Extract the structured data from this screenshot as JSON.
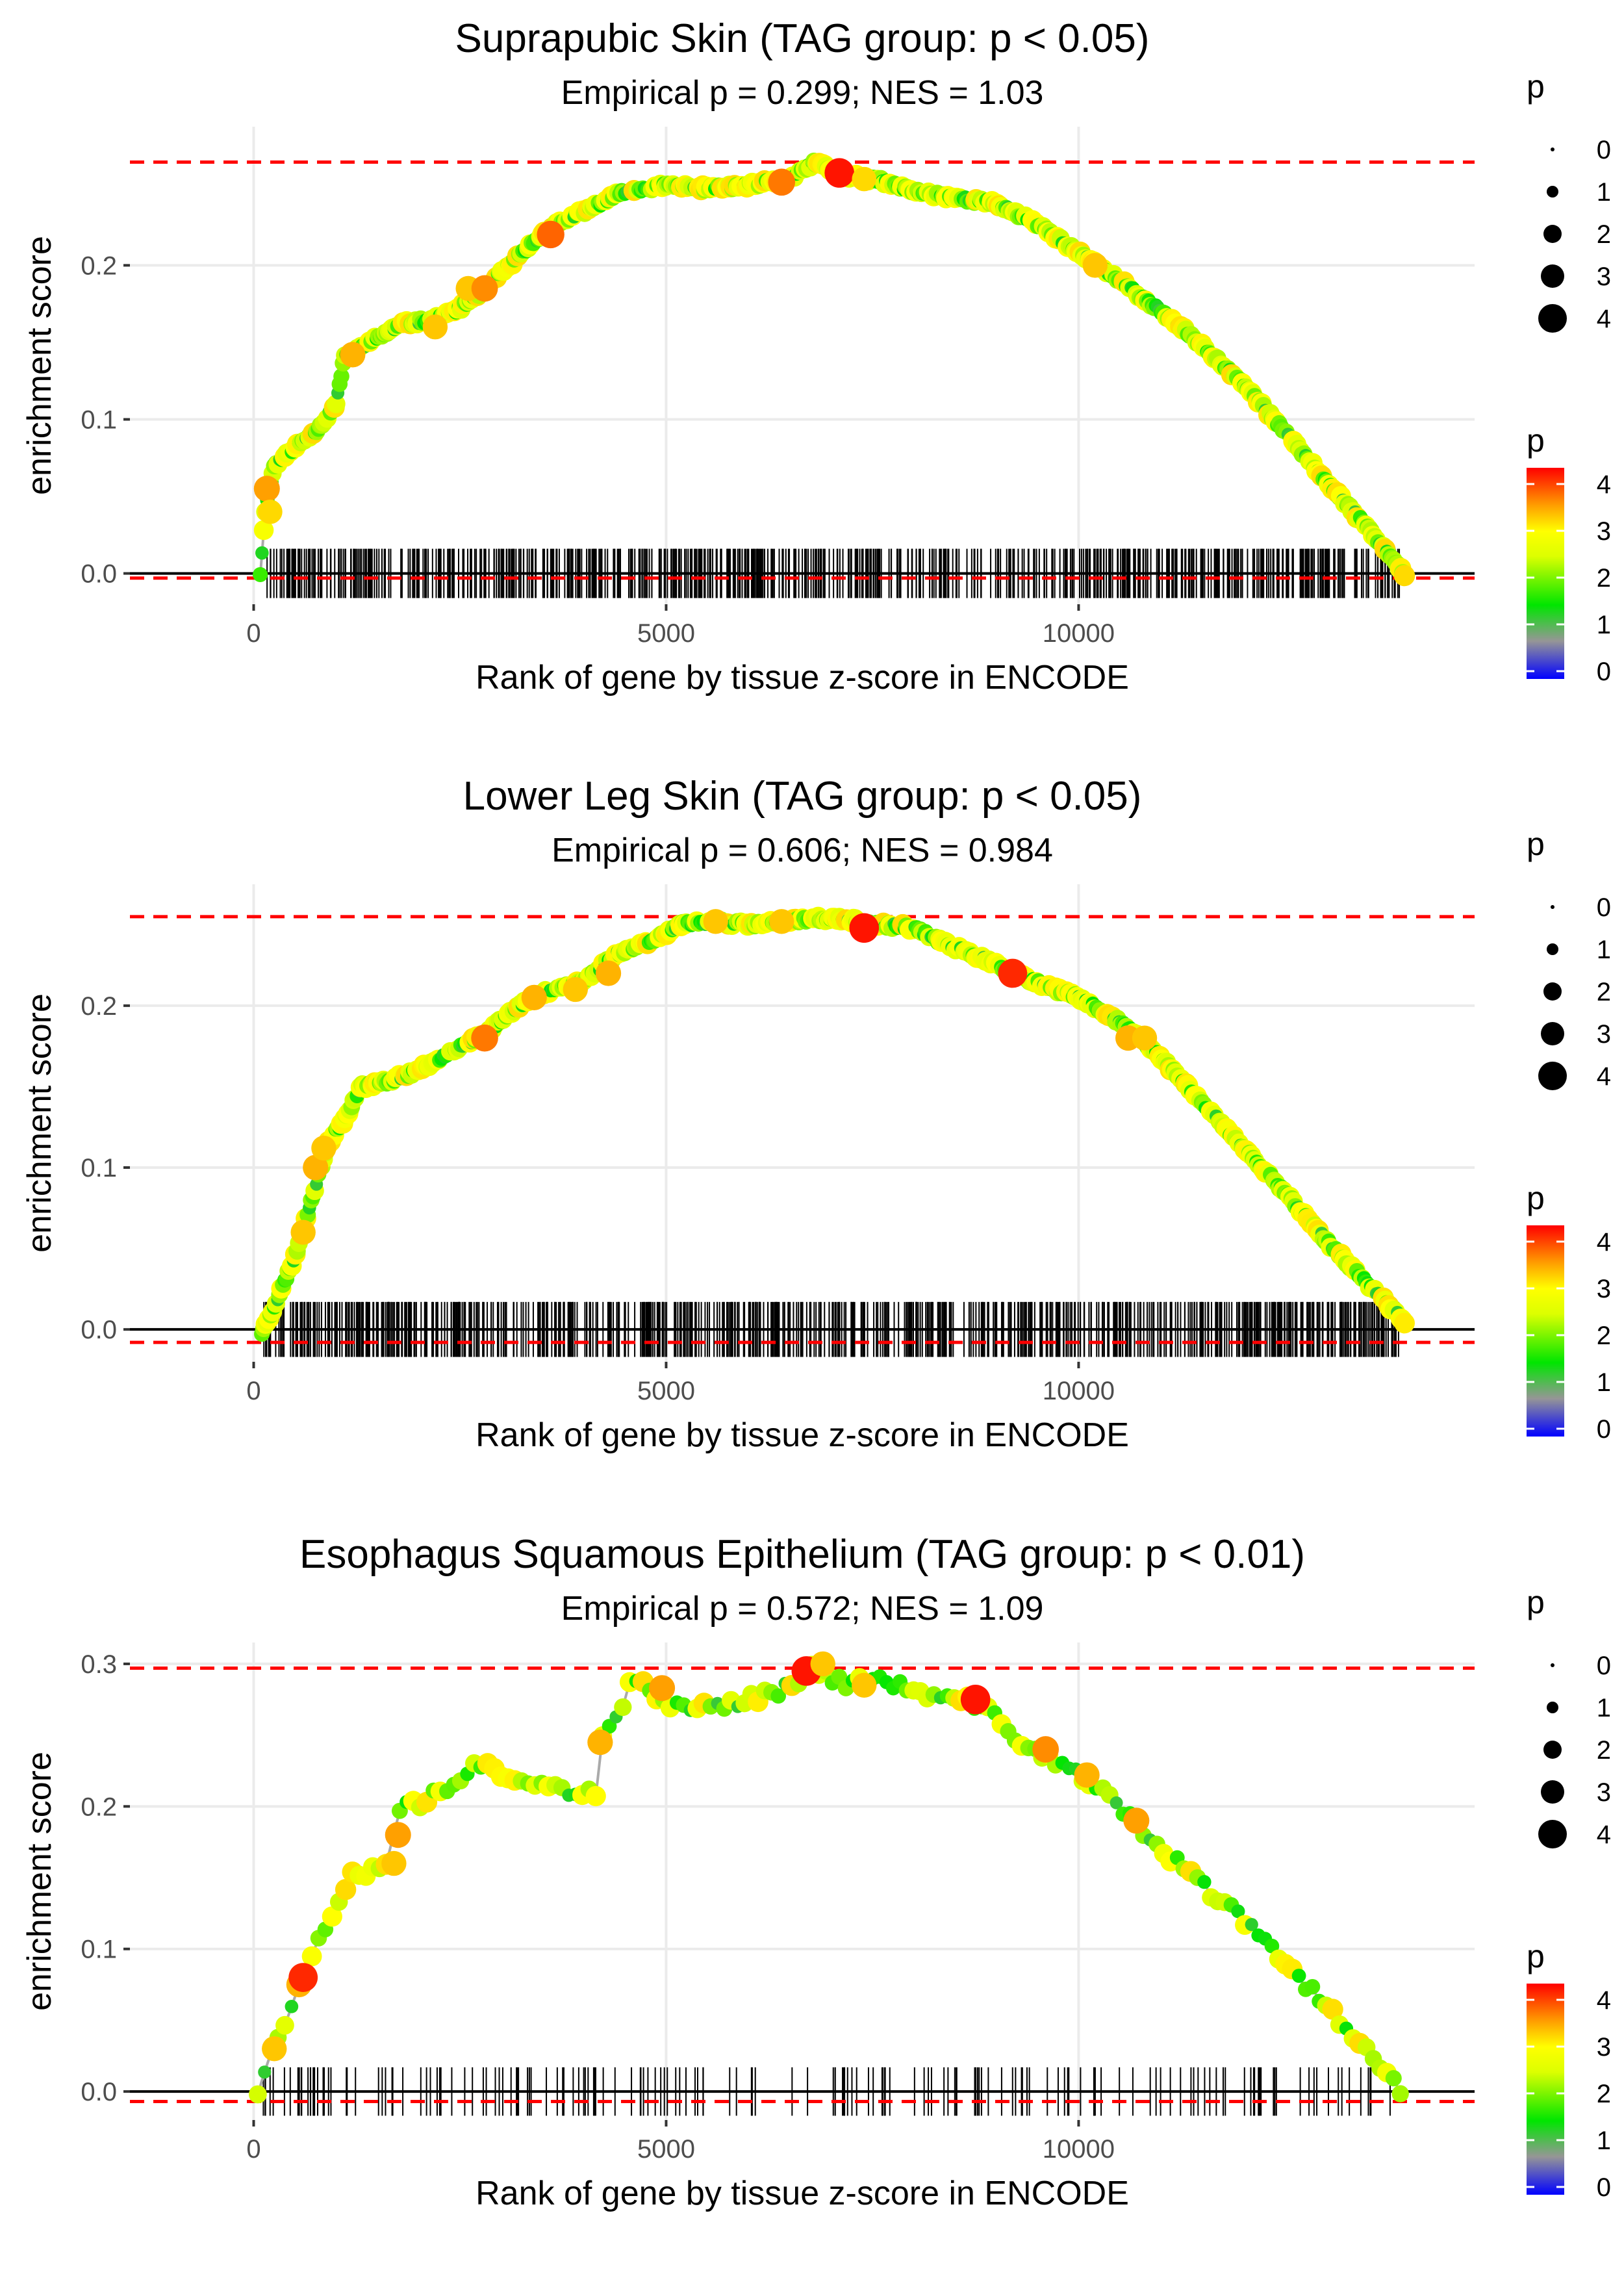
{
  "chart_data": [
    {
      "type": "line",
      "title": "Suprapubic Skin (TAG group: p < 0.05)",
      "subtitle": "Empirical p = 0.299; NES = 1.03",
      "xlabel": "Rank of gene by tissue z-score in ENCODE",
      "ylabel": "enrichment score",
      "xlim": [
        -1500,
        14800
      ],
      "ylim": [
        -0.02,
        0.29
      ],
      "xticks": [
        0,
        5000,
        10000
      ],
      "xtick_labels": [
        "0",
        "5000",
        "10000"
      ],
      "yticks": [
        0.0,
        0.1,
        0.2
      ],
      "ytick_labels": [
        "0.0",
        "0.1",
        "0.2"
      ],
      "max_es": 0.267,
      "min_es": -0.003,
      "rug_ymax": 0.016,
      "rug_range": [
        80,
        13900
      ],
      "rug_count": 700,
      "x_end": 13950,
      "seed": 11,
      "noise": 0.0015,
      "n_points": 650,
      "curve": [
        [
          80,
          0.0
        ],
        [
          150,
          0.045
        ],
        [
          250,
          0.07
        ],
        [
          500,
          0.082
        ],
        [
          800,
          0.095
        ],
        [
          1000,
          0.11
        ],
        [
          1100,
          0.14
        ],
        [
          1400,
          0.15
        ],
        [
          1800,
          0.162
        ],
        [
          2200,
          0.165
        ],
        [
          2500,
          0.172
        ],
        [
          2800,
          0.185
        ],
        [
          3200,
          0.205
        ],
        [
          3600,
          0.225
        ],
        [
          4000,
          0.235
        ],
        [
          4500,
          0.248
        ],
        [
          5000,
          0.252
        ],
        [
          5500,
          0.25
        ],
        [
          6000,
          0.252
        ],
        [
          6500,
          0.256
        ],
        [
          6800,
          0.267
        ],
        [
          7200,
          0.258
        ],
        [
          7600,
          0.255
        ],
        [
          8000,
          0.248
        ],
        [
          8500,
          0.244
        ],
        [
          9000,
          0.24
        ],
        [
          9500,
          0.227
        ],
        [
          10000,
          0.208
        ],
        [
          10500,
          0.19
        ],
        [
          11000,
          0.17
        ],
        [
          11500,
          0.148
        ],
        [
          12000,
          0.123
        ],
        [
          12500,
          0.092
        ],
        [
          13000,
          0.06
        ],
        [
          13500,
          0.03
        ],
        [
          13950,
          0.0
        ]
      ],
      "markers": [
        [
          160,
          0.055,
          3.5
        ],
        [
          200,
          0.04,
          3.2
        ],
        [
          1200,
          0.142,
          3.4
        ],
        [
          2200,
          0.16,
          3.3
        ],
        [
          2600,
          0.185,
          3.3
        ],
        [
          2800,
          0.185,
          3.6
        ],
        [
          3600,
          0.22,
          3.8
        ],
        [
          6400,
          0.254,
          3.7
        ],
        [
          7100,
          0.26,
          4.2
        ],
        [
          7400,
          0.256,
          3.2
        ],
        [
          10200,
          0.2,
          3.3
        ]
      ],
      "size_legend": {
        "title": "p",
        "labels": [
          "0",
          "1",
          "2",
          "3",
          "4"
        ]
      },
      "color_legend": {
        "title": "p",
        "labels": [
          "4",
          "3",
          "2",
          "1",
          "0"
        ]
      }
    },
    {
      "type": "line",
      "title": "Lower Leg Skin (TAG group: p < 0.05)",
      "subtitle": "Empirical p = 0.606; NES = 0.984",
      "xlabel": "Rank of gene by tissue z-score in ENCODE",
      "ylabel": "enrichment score",
      "xlim": [
        -1500,
        14800
      ],
      "ylim": [
        -0.02,
        0.275
      ],
      "xticks": [
        0,
        5000,
        10000
      ],
      "xtick_labels": [
        "0",
        "5000",
        "10000"
      ],
      "yticks": [
        0.0,
        0.1,
        0.2
      ],
      "ytick_labels": [
        "0.0",
        "0.1",
        "0.2"
      ],
      "max_es": 0.255,
      "min_es": -0.008,
      "rug_ymax": 0.017,
      "rug_range": [
        100,
        13900
      ],
      "rug_count": 750,
      "x_end": 13950,
      "seed": 23,
      "noise": 0.0015,
      "n_points": 650,
      "curve": [
        [
          100,
          -0.002
        ],
        [
          300,
          0.02
        ],
        [
          500,
          0.045
        ],
        [
          700,
          0.08
        ],
        [
          900,
          0.115
        ],
        [
          1100,
          0.13
        ],
        [
          1300,
          0.15
        ],
        [
          1600,
          0.153
        ],
        [
          2000,
          0.16
        ],
        [
          2400,
          0.172
        ],
        [
          2800,
          0.182
        ],
        [
          3200,
          0.2
        ],
        [
          3600,
          0.21
        ],
        [
          4000,
          0.215
        ],
        [
          4400,
          0.232
        ],
        [
          4800,
          0.24
        ],
        [
          5200,
          0.25
        ],
        [
          5600,
          0.252
        ],
        [
          6000,
          0.25
        ],
        [
          6400,
          0.252
        ],
        [
          6800,
          0.254
        ],
        [
          7200,
          0.253
        ],
        [
          7600,
          0.25
        ],
        [
          8000,
          0.248
        ],
        [
          8400,
          0.238
        ],
        [
          8800,
          0.23
        ],
        [
          9200,
          0.22
        ],
        [
          9600,
          0.212
        ],
        [
          10000,
          0.205
        ],
        [
          10500,
          0.19
        ],
        [
          11000,
          0.168
        ],
        [
          11500,
          0.14
        ],
        [
          12000,
          0.112
        ],
        [
          12500,
          0.085
        ],
        [
          13000,
          0.055
        ],
        [
          13500,
          0.028
        ],
        [
          13950,
          0.005
        ]
      ],
      "markers": [
        [
          600,
          0.06,
          3.3
        ],
        [
          750,
          0.1,
          3.4
        ],
        [
          850,
          0.112,
          3.3
        ],
        [
          2800,
          0.18,
          3.7
        ],
        [
          3400,
          0.205,
          3.4
        ],
        [
          3900,
          0.21,
          3.3
        ],
        [
          4300,
          0.22,
          3.4
        ],
        [
          5600,
          0.252,
          3.3
        ],
        [
          6400,
          0.252,
          3.3
        ],
        [
          7400,
          0.248,
          4.2
        ],
        [
          9200,
          0.22,
          4.1
        ],
        [
          10600,
          0.18,
          3.4
        ],
        [
          10800,
          0.18,
          3.3
        ]
      ],
      "size_legend": {
        "title": "p",
        "labels": [
          "0",
          "1",
          "2",
          "3",
          "4"
        ]
      },
      "color_legend": {
        "title": "p",
        "labels": [
          "4",
          "3",
          "2",
          "1",
          "0"
        ]
      }
    },
    {
      "type": "line",
      "title": "Esophagus Squamous Epithelium (TAG group: p < 0.01)",
      "subtitle": "Empirical p = 0.572; NES = 1.09",
      "xlabel": "Rank of gene by tissue z-score in ENCODE",
      "ylabel": "enrichment score",
      "xlim": [
        -1500,
        14800
      ],
      "ylim": [
        -0.02,
        0.315
      ],
      "xticks": [
        0,
        5000,
        10000
      ],
      "xtick_labels": [
        "0",
        "5000",
        "10000"
      ],
      "yticks": [
        0.0,
        0.1,
        0.2,
        0.3
      ],
      "ytick_labels": [
        "0.0",
        "0.1",
        "0.2",
        "0.3"
      ],
      "max_es": 0.297,
      "min_es": -0.007,
      "rug_ymax": 0.017,
      "rug_range": [
        100,
        13800
      ],
      "rug_count": 180,
      "x_end": 13900,
      "seed": 37,
      "noise": 0.004,
      "n_points": 170,
      "curve": [
        [
          50,
          0.0
        ],
        [
          200,
          0.03
        ],
        [
          400,
          0.05
        ],
        [
          600,
          0.08
        ],
        [
          800,
          0.11
        ],
        [
          1000,
          0.13
        ],
        [
          1200,
          0.155
        ],
        [
          1400,
          0.155
        ],
        [
          1600,
          0.16
        ],
        [
          1800,
          0.205
        ],
        [
          2000,
          0.2
        ],
        [
          2200,
          0.21
        ],
        [
          2400,
          0.215
        ],
        [
          2700,
          0.232
        ],
        [
          3000,
          0.222
        ],
        [
          3300,
          0.22
        ],
        [
          3600,
          0.215
        ],
        [
          3900,
          0.21
        ],
        [
          4150,
          0.208
        ],
        [
          4200,
          0.245
        ],
        [
          4400,
          0.26
        ],
        [
          4600,
          0.29
        ],
        [
          4800,
          0.28
        ],
        [
          5000,
          0.272
        ],
        [
          5500,
          0.27
        ],
        [
          6000,
          0.275
        ],
        [
          6400,
          0.282
        ],
        [
          6800,
          0.297
        ],
        [
          7200,
          0.285
        ],
        [
          7600,
          0.29
        ],
        [
          8000,
          0.28
        ],
        [
          8400,
          0.275
        ],
        [
          8800,
          0.272
        ],
        [
          9200,
          0.25
        ],
        [
          9600,
          0.235
        ],
        [
          10000,
          0.222
        ],
        [
          10500,
          0.2
        ],
        [
          11000,
          0.17
        ],
        [
          11500,
          0.145
        ],
        [
          12000,
          0.12
        ],
        [
          12500,
          0.09
        ],
        [
          13000,
          0.06
        ],
        [
          13500,
          0.03
        ],
        [
          13900,
          0.002
        ]
      ],
      "markers": [
        [
          250,
          0.03,
          3.3
        ],
        [
          550,
          0.075,
          3.4
        ],
        [
          600,
          0.08,
          4.1
        ],
        [
          1700,
          0.16,
          3.3
        ],
        [
          1750,
          0.18,
          3.5
        ],
        [
          4200,
          0.245,
          3.4
        ],
        [
          4950,
          0.283,
          3.5
        ],
        [
          6700,
          0.295,
          4.2
        ],
        [
          6900,
          0.3,
          3.3
        ],
        [
          7400,
          0.285,
          3.3
        ],
        [
          8750,
          0.275,
          4.2
        ],
        [
          9600,
          0.24,
          3.6
        ],
        [
          10100,
          0.222,
          3.4
        ],
        [
          10700,
          0.19,
          3.5
        ]
      ],
      "size_legend": {
        "title": "p",
        "labels": [
          "0",
          "1",
          "2",
          "3",
          "4"
        ]
      },
      "color_legend": {
        "title": "p",
        "labels": [
          "4",
          "3",
          "2",
          "1",
          "0"
        ]
      }
    }
  ]
}
